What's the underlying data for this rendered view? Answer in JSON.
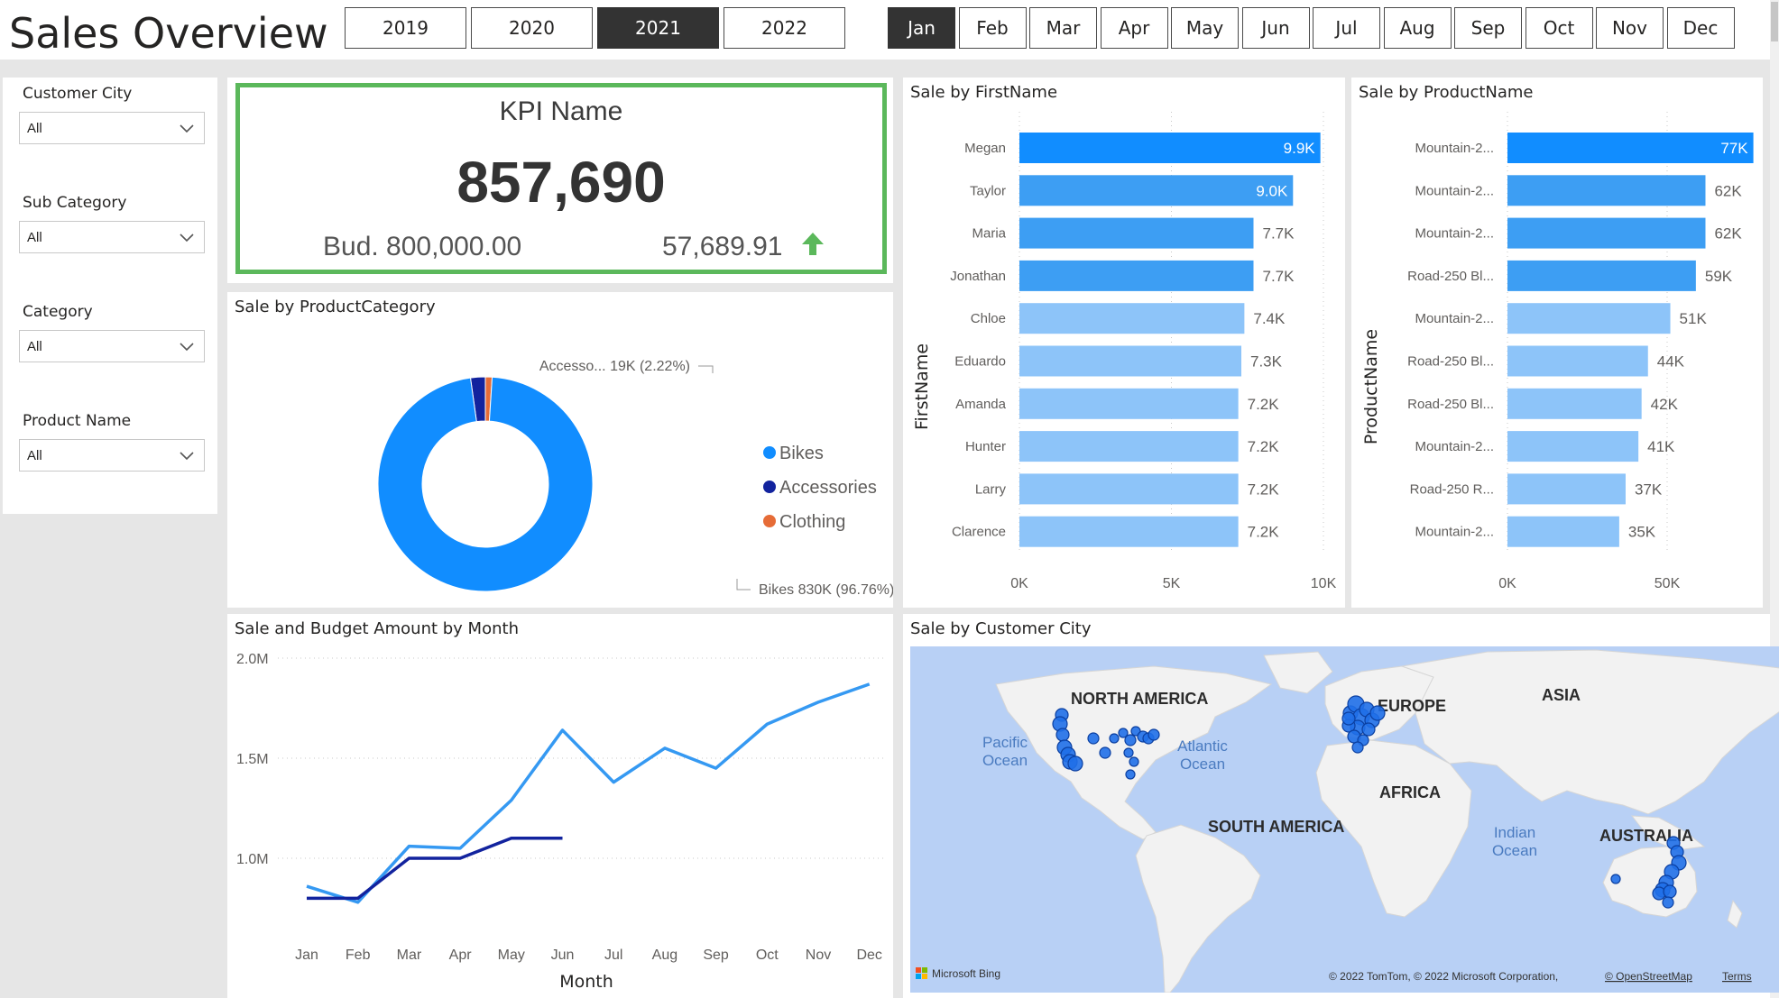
{
  "header": {
    "title": "Sales Overview",
    "years": [
      {
        "label": "2019",
        "selected": false
      },
      {
        "label": "2020",
        "selected": false
      },
      {
        "label": "2021",
        "selected": true
      },
      {
        "label": "2022",
        "selected": false
      }
    ],
    "months": [
      {
        "label": "Jan",
        "selected": true
      },
      {
        "label": "Feb",
        "selected": false
      },
      {
        "label": "Mar",
        "selected": false
      },
      {
        "label": "Apr",
        "selected": false
      },
      {
        "label": "May",
        "selected": false
      },
      {
        "label": "Jun",
        "selected": false
      },
      {
        "label": "Jul",
        "selected": false
      },
      {
        "label": "Aug",
        "selected": false
      },
      {
        "label": "Sep",
        "selected": false
      },
      {
        "label": "Oct",
        "selected": false
      },
      {
        "label": "Nov",
        "selected": false
      },
      {
        "label": "Dec",
        "selected": false
      }
    ]
  },
  "slicers": [
    {
      "label": "Customer City",
      "value": "All"
    },
    {
      "label": "Sub Category",
      "value": "All"
    },
    {
      "label": "Category",
      "value": "All"
    },
    {
      "label": "Product Name",
      "value": "All"
    }
  ],
  "kpi": {
    "name": "KPI Name",
    "value": "857,690",
    "budget": "Bud. 800,000.00",
    "difference": "57,689.91",
    "trend": "up",
    "border_color": "#5bb85b"
  },
  "donut": {
    "title": "Sale by ProductCategory",
    "label_accessories": "Accesso... 19K (2.22%)",
    "label_bikes": "Bikes 830K (96.76%)"
  },
  "firstname_chart": {
    "title": "Sale by FirstName",
    "axis_title": "FirstName",
    "ticks": [
      "0K",
      "5K",
      "10K"
    ]
  },
  "product_chart": {
    "title": "Sale by ProductName",
    "axis_title": "ProductName",
    "ticks": [
      "0K",
      "50K"
    ]
  },
  "line_chart_text": {
    "title": "Sale and Budget Amount by Month",
    "xlabel": "Month",
    "yticks": [
      "2.0M",
      "1.5M",
      "1.0M"
    ]
  },
  "map": {
    "title": "Sale by Customer City",
    "continents": [
      "NORTH AMERICA",
      "EUROPE",
      "ASIA",
      "AFRICA",
      "SOUTH AMERICA",
      "AUSTRALIA"
    ],
    "oceans": [
      "Pacific Ocean",
      "Atlantic Ocean",
      "Indian Ocean"
    ],
    "brand": "Microsoft Bing",
    "attribution": "© 2022 TomTom, © 2022 Microsoft Corporation,",
    "osm_link": "© OpenStreetMap",
    "terms_link": "Terms"
  },
  "colors": {
    "dark_blue": "#12239e",
    "mid_blue": "#118dff",
    "light_blue": "#3599f2",
    "pale_blue": "#8dc4f9",
    "orange": "#e66c37",
    "positive": "#5bb85b"
  },
  "chart_data": [
    {
      "type": "pie",
      "variant": "donut",
      "title": "Sale by ProductCategory",
      "categories": [
        "Bikes",
        "Accessories",
        "Clothing"
      ],
      "values": [
        830000,
        19000,
        8690
      ],
      "percentages": [
        96.76,
        2.22,
        1.02
      ],
      "legend": [
        "Bikes",
        "Accessories",
        "Clothing"
      ],
      "legend_position": "right",
      "colors": [
        "#118dff",
        "#12239e",
        "#e66c37"
      ]
    },
    {
      "type": "bar",
      "orientation": "horizontal",
      "title": "Sale by FirstName",
      "ylabel": "FirstName",
      "categories": [
        "Megan",
        "Taylor",
        "Maria",
        "Jonathan",
        "Chloe",
        "Eduardo",
        "Amanda",
        "Hunter",
        "Larry",
        "Clarence"
      ],
      "values": [
        9900,
        9000,
        7700,
        7700,
        7400,
        7300,
        7200,
        7200,
        7200,
        7200
      ],
      "data_labels": [
        "9.9K",
        "9.0K",
        "7.7K",
        "7.7K",
        "7.4K",
        "7.3K",
        "7.2K",
        "7.2K",
        "7.2K",
        "7.2K"
      ],
      "xlim": [
        0,
        10000
      ],
      "grid": true
    },
    {
      "type": "bar",
      "orientation": "horizontal",
      "title": "Sale by ProductName",
      "ylabel": "ProductName",
      "categories": [
        "Mountain-2...",
        "Mountain-2...",
        "Mountain-2...",
        "Road-250 Bl...",
        "Mountain-2...",
        "Road-250 Bl...",
        "Road-250 Bl...",
        "Mountain-2...",
        "Road-250 R...",
        "Mountain-2..."
      ],
      "values": [
        77000,
        62000,
        62000,
        59000,
        51000,
        44000,
        42000,
        41000,
        37000,
        35000
      ],
      "data_labels": [
        "77K",
        "62K",
        "62K",
        "59K",
        "51K",
        "44K",
        "42K",
        "41K",
        "37K",
        "35K"
      ],
      "xlim": [
        0,
        77000
      ],
      "grid": true
    },
    {
      "type": "line",
      "title": "Sale and Budget Amount by Month",
      "xlabel": "Month",
      "x": [
        "Jan",
        "Feb",
        "Mar",
        "Apr",
        "May",
        "Jun",
        "Jul",
        "Aug",
        "Sep",
        "Oct",
        "Nov",
        "Dec"
      ],
      "ylim": [
        0.8,
        2.0
      ],
      "yticks": [
        1.0,
        1.5,
        2.0
      ],
      "series": [
        {
          "values": [
            0.86,
            0.78,
            1.06,
            1.05,
            1.29,
            1.64,
            1.38,
            1.55,
            1.45,
            1.67,
            1.78,
            1.87
          ],
          "color": "#3599f2"
        },
        {
          "values": [
            0.8,
            0.8,
            1.0,
            1.0,
            1.1,
            1.1,
            null,
            null,
            null,
            null,
            null,
            null
          ],
          "color": "#12239e"
        }
      ],
      "grid": true
    }
  ]
}
